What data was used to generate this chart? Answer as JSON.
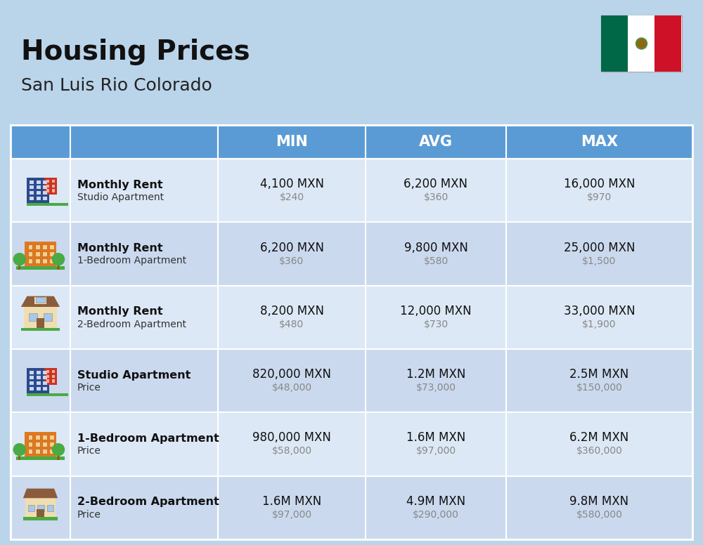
{
  "title": "Housing Prices",
  "subtitle": "San Luis Rio Colorado",
  "background_color": "#bad4ea",
  "header_bg_color": "#5b9bd5",
  "header_text_color": "#ffffff",
  "row_colors": [
    "#dce8f5",
    "#cad9ee"
  ],
  "col_header_labels": [
    "MIN",
    "AVG",
    "MAX"
  ],
  "rows": [
    {
      "icon_type": "blue_office",
      "label_bold": "Monthly Rent",
      "label_sub": "Studio Apartment",
      "min_main": "4,100 MXN",
      "min_sub": "$240",
      "avg_main": "6,200 MXN",
      "avg_sub": "$360",
      "max_main": "16,000 MXN",
      "max_sub": "$970"
    },
    {
      "icon_type": "orange_apartment",
      "label_bold": "Monthly Rent",
      "label_sub": "1-Bedroom Apartment",
      "min_main": "6,200 MXN",
      "min_sub": "$360",
      "avg_main": "9,800 MXN",
      "avg_sub": "$580",
      "max_main": "25,000 MXN",
      "max_sub": "$1,500"
    },
    {
      "icon_type": "beige_house",
      "label_bold": "Monthly Rent",
      "label_sub": "2-Bedroom Apartment",
      "min_main": "8,200 MXN",
      "min_sub": "$480",
      "avg_main": "12,000 MXN",
      "avg_sub": "$730",
      "max_main": "33,000 MXN",
      "max_sub": "$1,900"
    },
    {
      "icon_type": "blue_office",
      "label_bold": "Studio Apartment",
      "label_sub": "Price",
      "min_main": "820,000 MXN",
      "min_sub": "$48,000",
      "avg_main": "1.2M MXN",
      "avg_sub": "$73,000",
      "max_main": "2.5M MXN",
      "max_sub": "$150,000"
    },
    {
      "icon_type": "orange_apartment",
      "label_bold": "1-Bedroom Apartment",
      "label_sub": "Price",
      "min_main": "980,000 MXN",
      "min_sub": "$58,000",
      "avg_main": "1.6M MXN",
      "avg_sub": "$97,000",
      "max_main": "6.2M MXN",
      "max_sub": "$360,000"
    },
    {
      "icon_type": "beige_house2",
      "label_bold": "2-Bedroom Apartment",
      "label_sub": "Price",
      "min_main": "1.6M MXN",
      "min_sub": "$97,000",
      "avg_main": "4.9M MXN",
      "avg_sub": "$290,000",
      "max_main": "9.8M MXN",
      "max_sub": "$580,000"
    }
  ],
  "flag_green": "#006847",
  "flag_white": "#FFFFFF",
  "flag_red": "#CE1126",
  "divider_color": "#ffffff",
  "title_fontsize": 28,
  "subtitle_fontsize": 18,
  "header_fontsize": 15,
  "main_fontsize": 12,
  "sub_fontsize": 10,
  "label_bold_fontsize": 11.5,
  "label_sub_fontsize": 10
}
